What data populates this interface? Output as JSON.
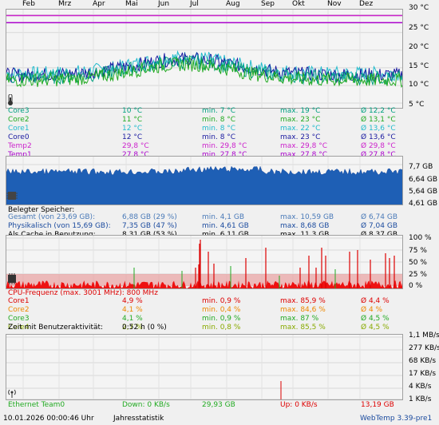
{
  "months": [
    "Feb",
    "Mrz",
    "Apr",
    "Mai",
    "Jun",
    "Jul",
    "Aug",
    "Sep",
    "Okt",
    "Nov",
    "Dez"
  ],
  "temp": {
    "y_labels": [
      "30 °C",
      "25 °C",
      "20 °C",
      "15 °C",
      "10 °C",
      "5 °C"
    ],
    "rows": [
      {
        "name": "Core3",
        "cur": "10 °C",
        "min": "min. 7 °C",
        "max": "max. 19 °C",
        "avg": "Ø 12,2 °C",
        "color": "#00a080"
      },
      {
        "name": "Core2",
        "cur": "11 °C",
        "min": "min. 8 °C",
        "max": "max. 23 °C",
        "avg": "Ø 13,1 °C",
        "color": "#22aa22"
      },
      {
        "name": "Core1",
        "cur": "12 °C",
        "min": "min. 8 °C",
        "max": "max. 22 °C",
        "avg": "Ø 13,6 °C",
        "color": "#22bbcc"
      },
      {
        "name": "Core0",
        "cur": "12 °C",
        "min": "min. 8 °C",
        "max": "max. 23 °C",
        "avg": "Ø 13,6 °C",
        "color": "#1a1aa0"
      },
      {
        "name": "Temp2",
        "cur": "29,8 °C",
        "min": "min. 29,8 °C",
        "max": "max. 29,8 °C",
        "avg": "Ø 29,8 °C",
        "color": "#cc22cc"
      },
      {
        "name": "Temp1",
        "cur": "27,8 °C",
        "min": "min. 27,8 °C",
        "max": "max. 27,8 °C",
        "avg": "Ø 27,8 °C",
        "color": "#aa00cc"
      }
    ]
  },
  "mem": {
    "y_labels": [
      "7,7 GB",
      "6,64 GB",
      "5,64 GB",
      "4,61 GB"
    ],
    "title": "Belegter Speicher:",
    "rows": [
      {
        "name": "Gesamt (von 23,69 GB):",
        "cur": "6,88 GB (29 %)",
        "min": "min. 4,1 GB",
        "max": "max. 10,59 GB",
        "avg": "Ø 6,74 GB",
        "color": "#4a7ab8"
      },
      {
        "name": "Physikalisch (von 15,69 GB):",
        "cur": "7,35 GB (47 %)",
        "min": "min. 4,61 GB",
        "max": "max. 8,68 GB",
        "avg": "Ø 7,04 GB",
        "color": "#1a4a9e"
      },
      {
        "name": "Als Cache in Benutzung:",
        "cur": "8,31 GB (53 %)",
        "min": "min. 6,11 GB",
        "max": "max. 11,3 GB",
        "avg": "Ø 8,37 GB",
        "color": "#000000"
      }
    ]
  },
  "cpu": {
    "y_labels": [
      "100 %",
      "75 %",
      "50 %",
      "25 %",
      "0 %"
    ],
    "freq": "CPU-Frequenz (max. 3001 MHz): 800 MHz",
    "rows": [
      {
        "name": "Core1",
        "cur": "4,9 %",
        "min": "min. 0,9 %",
        "max": "max. 85,9 %",
        "avg": "Ø 4,4 %",
        "color": "#dd0000"
      },
      {
        "name": "Core2",
        "cur": "4,1 %",
        "min": "min. 0,4 %",
        "max": "max. 84,6 %",
        "avg": "Ø 4 %",
        "color": "#ee8800"
      },
      {
        "name": "Core3",
        "cur": "4,1 %",
        "min": "min. 0,9 %",
        "max": "max. 87 %",
        "avg": "Ø 4,5 %",
        "color": "#22aa22"
      },
      {
        "name": "Core4",
        "cur": "2,7 %",
        "min": "min. 0,8 %",
        "max": "max. 85,5 %",
        "avg": "Ø 4,5 %",
        "color": "#88aa00"
      }
    ],
    "activity_label": "Zeit mit Benutzeraktivität:",
    "activity_value": "0:52 h (0 %)"
  },
  "net": {
    "y_labels": [
      "1,1 MB/s",
      "277 KB/s",
      "68 KB/s",
      "17 KB/s",
      "4 KB/s",
      "1 KB/s"
    ],
    "name": "Ethernet Team0",
    "down": "Down: 0 KB/s",
    "down_total": "29,93 GB",
    "up": "Up: 0 KB/s",
    "up_total": "13,19 GB"
  },
  "footer": {
    "timestamp": "10.01.2026 00:00:46 Uhr",
    "mode": "Jahresstatistik",
    "version": "WebTemp 3.39-pre1"
  },
  "icons": [
    "thermometer-icon",
    "memory-chip-icon",
    "cpu-chip-icon",
    "network-antenna-icon"
  ]
}
